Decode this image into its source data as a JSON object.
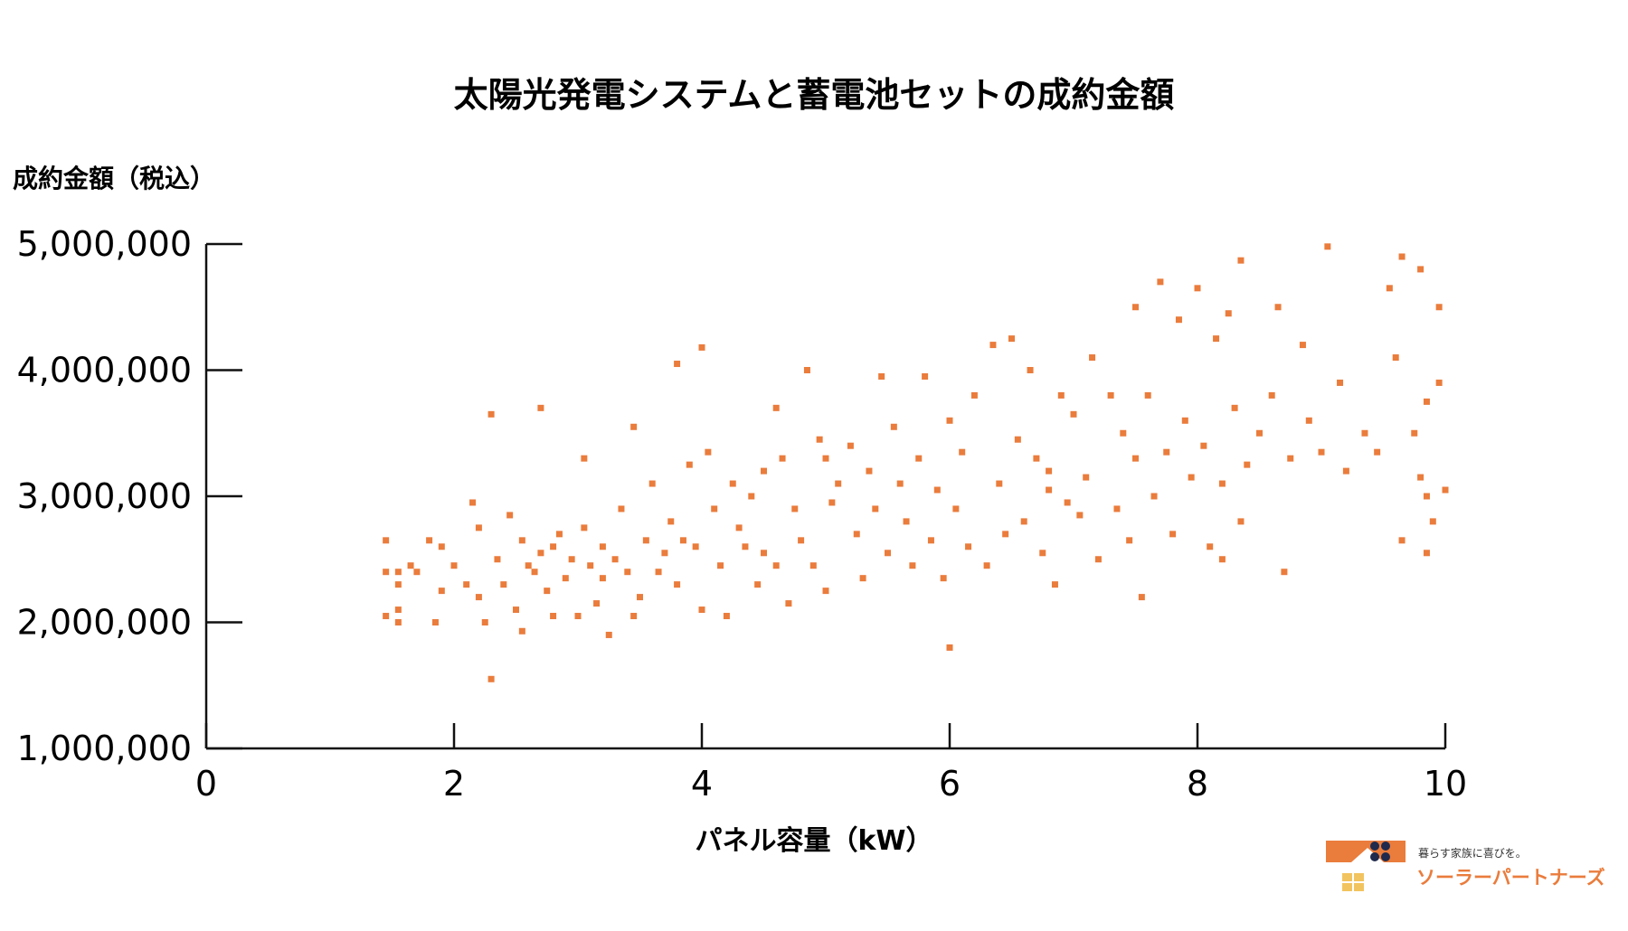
{
  "chart_data": {
    "type": "scatter",
    "title": "太陽光発電システムと蓄電池セットの成約金額",
    "ylabel": "成約金額（税込）",
    "xlabel": "パネル容量（kW）",
    "xlim": [
      0,
      10
    ],
    "ylim": [
      1000000,
      5000000
    ],
    "x_ticks": [
      0,
      2,
      4,
      6,
      8,
      10
    ],
    "x_tick_labels": [
      "0",
      "2",
      "4",
      "6",
      "8",
      "10"
    ],
    "y_ticks": [
      1000000,
      2000000,
      3000000,
      4000000,
      5000000
    ],
    "y_tick_labels": [
      "1,000,000",
      "2,000,000",
      "3,000,000",
      "4,000,000",
      "5,000,000"
    ],
    "grid": false,
    "marker_color": "#ea7c3c",
    "marker": "square",
    "points": [
      [
        1.45,
        2650000
      ],
      [
        1.45,
        2400000
      ],
      [
        1.45,
        2050000
      ],
      [
        1.55,
        2400000
      ],
      [
        1.55,
        2300000
      ],
      [
        1.55,
        2100000
      ],
      [
        1.55,
        2000000
      ],
      [
        1.65,
        2450000
      ],
      [
        1.7,
        2400000
      ],
      [
        1.8,
        2650000
      ],
      [
        1.85,
        2000000
      ],
      [
        1.9,
        2250000
      ],
      [
        1.9,
        2600000
      ],
      [
        2.0,
        2450000
      ],
      [
        2.1,
        2300000
      ],
      [
        2.15,
        2950000
      ],
      [
        2.2,
        2750000
      ],
      [
        2.2,
        2200000
      ],
      [
        2.25,
        2000000
      ],
      [
        2.3,
        1550000
      ],
      [
        2.3,
        3650000
      ],
      [
        2.35,
        2500000
      ],
      [
        2.4,
        2300000
      ],
      [
        2.45,
        2850000
      ],
      [
        2.5,
        2100000
      ],
      [
        2.55,
        1930000
      ],
      [
        2.55,
        2650000
      ],
      [
        2.6,
        2450000
      ],
      [
        2.65,
        2400000
      ],
      [
        2.7,
        2550000
      ],
      [
        2.7,
        3700000
      ],
      [
        2.75,
        2250000
      ],
      [
        2.8,
        2600000
      ],
      [
        2.8,
        2050000
      ],
      [
        2.85,
        2700000
      ],
      [
        2.9,
        2350000
      ],
      [
        2.95,
        2500000
      ],
      [
        3.0,
        2050000
      ],
      [
        3.05,
        3300000
      ],
      [
        3.05,
        2750000
      ],
      [
        3.1,
        2450000
      ],
      [
        3.15,
        2150000
      ],
      [
        3.2,
        2600000
      ],
      [
        3.2,
        2350000
      ],
      [
        3.25,
        1900000
      ],
      [
        3.3,
        2500000
      ],
      [
        3.35,
        2900000
      ],
      [
        3.4,
        2400000
      ],
      [
        3.45,
        3550000
      ],
      [
        3.45,
        2050000
      ],
      [
        3.5,
        2200000
      ],
      [
        3.55,
        2650000
      ],
      [
        3.6,
        3100000
      ],
      [
        3.65,
        2400000
      ],
      [
        3.7,
        2550000
      ],
      [
        3.75,
        2800000
      ],
      [
        3.8,
        2300000
      ],
      [
        3.8,
        4050000
      ],
      [
        3.85,
        2650000
      ],
      [
        3.9,
        3250000
      ],
      [
        3.95,
        2600000
      ],
      [
        4.0,
        2100000
      ],
      [
        4.0,
        4180000
      ],
      [
        4.05,
        3350000
      ],
      [
        4.1,
        2900000
      ],
      [
        4.15,
        2450000
      ],
      [
        4.2,
        2050000
      ],
      [
        4.25,
        3100000
      ],
      [
        4.3,
        2750000
      ],
      [
        4.35,
        2600000
      ],
      [
        4.4,
        3000000
      ],
      [
        4.45,
        2300000
      ],
      [
        4.5,
        3200000
      ],
      [
        4.5,
        2550000
      ],
      [
        4.6,
        3700000
      ],
      [
        4.6,
        2450000
      ],
      [
        4.65,
        3300000
      ],
      [
        4.7,
        2150000
      ],
      [
        4.75,
        2900000
      ],
      [
        4.8,
        2650000
      ],
      [
        4.85,
        4000000
      ],
      [
        4.9,
        2450000
      ],
      [
        4.95,
        3450000
      ],
      [
        5.0,
        3300000
      ],
      [
        5.0,
        2250000
      ],
      [
        5.05,
        2950000
      ],
      [
        5.1,
        3100000
      ],
      [
        5.2,
        3400000
      ],
      [
        5.25,
        2700000
      ],
      [
        5.3,
        2350000
      ],
      [
        5.35,
        3200000
      ],
      [
        5.4,
        2900000
      ],
      [
        5.45,
        3950000
      ],
      [
        5.5,
        2550000
      ],
      [
        5.55,
        3550000
      ],
      [
        5.6,
        3100000
      ],
      [
        5.65,
        2800000
      ],
      [
        5.7,
        2450000
      ],
      [
        5.75,
        3300000
      ],
      [
        5.8,
        3950000
      ],
      [
        5.85,
        2650000
      ],
      [
        5.9,
        3050000
      ],
      [
        5.95,
        2350000
      ],
      [
        6.0,
        1800000
      ],
      [
        6.0,
        3600000
      ],
      [
        6.05,
        2900000
      ],
      [
        6.1,
        3350000
      ],
      [
        6.15,
        2600000
      ],
      [
        6.2,
        3800000
      ],
      [
        6.3,
        2450000
      ],
      [
        6.35,
        4200000
      ],
      [
        6.4,
        3100000
      ],
      [
        6.45,
        2700000
      ],
      [
        6.5,
        4250000
      ],
      [
        6.55,
        3450000
      ],
      [
        6.6,
        2800000
      ],
      [
        6.65,
        4000000
      ],
      [
        6.7,
        3300000
      ],
      [
        6.75,
        2550000
      ],
      [
        6.8,
        3050000
      ],
      [
        6.8,
        3200000
      ],
      [
        6.85,
        2300000
      ],
      [
        6.9,
        3800000
      ],
      [
        6.95,
        2950000
      ],
      [
        7.0,
        3650000
      ],
      [
        7.05,
        2850000
      ],
      [
        7.1,
        3150000
      ],
      [
        7.15,
        4100000
      ],
      [
        7.2,
        2500000
      ],
      [
        7.3,
        3800000
      ],
      [
        7.35,
        2900000
      ],
      [
        7.4,
        3500000
      ],
      [
        7.45,
        2650000
      ],
      [
        7.5,
        4500000
      ],
      [
        7.5,
        3300000
      ],
      [
        7.55,
        2200000
      ],
      [
        7.6,
        3800000
      ],
      [
        7.65,
        3000000
      ],
      [
        7.7,
        4700000
      ],
      [
        7.75,
        3350000
      ],
      [
        7.8,
        2700000
      ],
      [
        7.85,
        4400000
      ],
      [
        7.9,
        3600000
      ],
      [
        7.95,
        3150000
      ],
      [
        8.0,
        4650000
      ],
      [
        8.05,
        3400000
      ],
      [
        8.1,
        2600000
      ],
      [
        8.15,
        4250000
      ],
      [
        8.2,
        3100000
      ],
      [
        8.2,
        2500000
      ],
      [
        8.25,
        4450000
      ],
      [
        8.3,
        3700000
      ],
      [
        8.35,
        4870000
      ],
      [
        8.35,
        2800000
      ],
      [
        8.4,
        3250000
      ],
      [
        8.5,
        3500000
      ],
      [
        8.6,
        3800000
      ],
      [
        8.65,
        4500000
      ],
      [
        8.7,
        2400000
      ],
      [
        8.75,
        3300000
      ],
      [
        8.85,
        4200000
      ],
      [
        8.9,
        3600000
      ],
      [
        9.0,
        3350000
      ],
      [
        9.05,
        4980000
      ],
      [
        9.15,
        3900000
      ],
      [
        9.2,
        3200000
      ],
      [
        9.35,
        3500000
      ],
      [
        9.45,
        3350000
      ],
      [
        9.55,
        4650000
      ],
      [
        9.6,
        4100000
      ],
      [
        9.65,
        2650000
      ],
      [
        9.75,
        3500000
      ],
      [
        9.8,
        4800000
      ],
      [
        9.85,
        3750000
      ],
      [
        9.85,
        3000000
      ],
      [
        9.9,
        2800000
      ],
      [
        9.95,
        4500000
      ],
      [
        9.95,
        3900000
      ],
      [
        10.0,
        3050000
      ],
      [
        9.65,
        4900000
      ],
      [
        9.85,
        2550000
      ],
      [
        9.8,
        3150000
      ]
    ]
  },
  "logo": {
    "tagline": "暮らす家族に喜びを。",
    "name": "ソーラーパートナーズ",
    "roof_color": "#ea7c3c",
    "panel_color": "#1f2a4d",
    "window_color": "#f2c45f"
  }
}
